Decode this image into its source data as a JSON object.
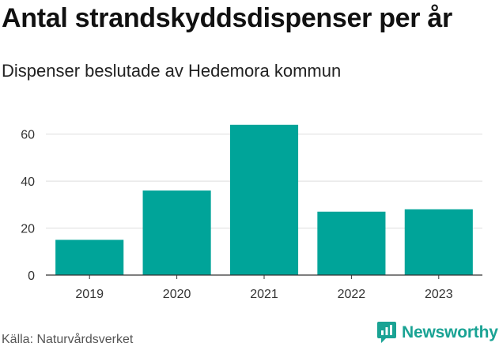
{
  "chart_data": {
    "type": "bar",
    "title": "Antal strandskyddsdispenser per år",
    "subtitle": "Dispenser beslutade av Hedemora kommun",
    "categories": [
      "2019",
      "2020",
      "2021",
      "2022",
      "2023"
    ],
    "values": [
      15,
      36,
      64,
      27,
      28
    ],
    "ylim": [
      0,
      70
    ],
    "yticks": [
      0,
      20,
      40,
      60
    ],
    "xlabel": "",
    "ylabel": "",
    "grid": true,
    "bar_color": "#00a499"
  },
  "footer": {
    "source": "Källa: Naturvårdsverket",
    "brand": "Newsworthy",
    "brand_icon": "newsworthy-logo-icon",
    "brand_color": "#1aa394"
  }
}
